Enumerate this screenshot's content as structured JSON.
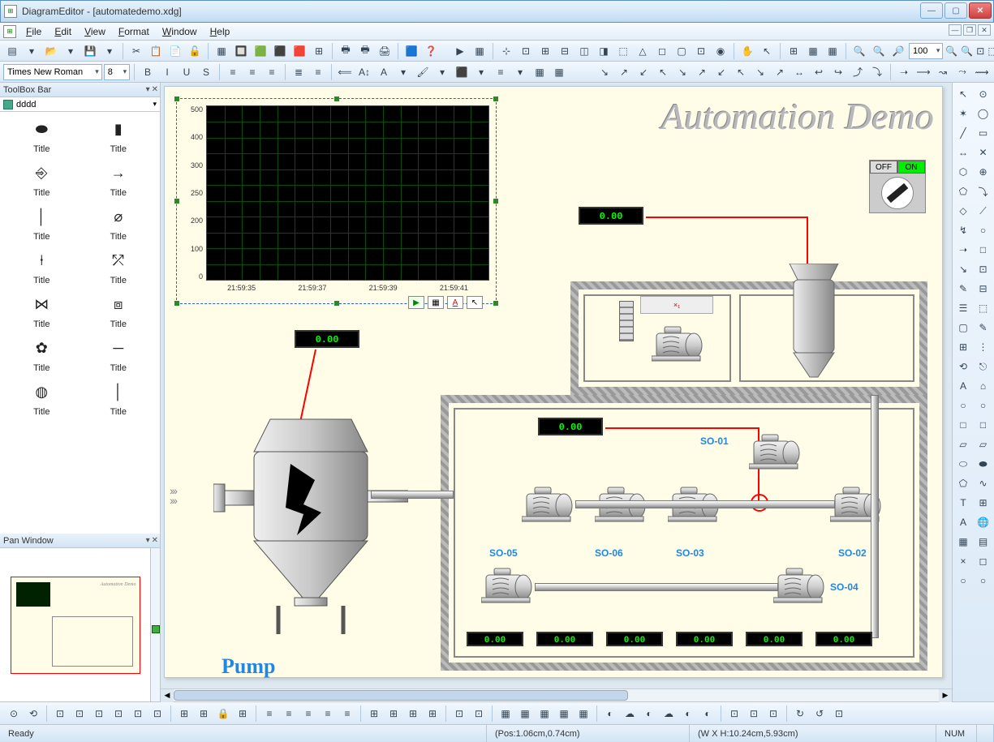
{
  "window": {
    "title": "DiagramEditor - [automatedemo.xdg]",
    "app_abbr": "⊞"
  },
  "menu": [
    "File",
    "Edit",
    "View",
    "Format",
    "Window",
    "Help"
  ],
  "font_row": {
    "font_name": "Times New Roman",
    "font_size": "8"
  },
  "zoom_value": "100",
  "toolbox": {
    "header": "ToolBox Bar",
    "tab_label": "dddd",
    "items": [
      {
        "glyph": "⬬",
        "label": "Title"
      },
      {
        "glyph": "▮",
        "label": "Title"
      },
      {
        "glyph": "⎆",
        "label": "Title"
      },
      {
        "glyph": "→",
        "label": "Title"
      },
      {
        "glyph": "│",
        "label": "Title"
      },
      {
        "glyph": "⌀",
        "label": "Title"
      },
      {
        "glyph": "⍿",
        "label": "Title"
      },
      {
        "glyph": "⤱",
        "label": "Title"
      },
      {
        "glyph": "⋈",
        "label": "Title"
      },
      {
        "glyph": "⧈",
        "label": "Title"
      },
      {
        "glyph": "✿",
        "label": "Title"
      },
      {
        "glyph": "─",
        "label": "Title"
      },
      {
        "glyph": "◍",
        "label": "Title"
      },
      {
        "glyph": "│",
        "label": "Title"
      }
    ]
  },
  "pan": {
    "header": "Pan Window",
    "thumb_title": "Automation Demo"
  },
  "canvas": {
    "big_title": "Automation Demo",
    "pump_label": "Pump",
    "switch": {
      "off": "OFF",
      "on": "ON"
    },
    "chart": {
      "y_ticks": [
        "500",
        "400",
        "300",
        "250",
        "200",
        "100",
        "0"
      ],
      "x_ticks": [
        "21:59:35",
        "21:59:37",
        "21:59:39",
        "21:59:41"
      ],
      "bg": "#000000",
      "grid_color": "#0a4a0a",
      "ylim": [
        0,
        500
      ],
      "rows": 11,
      "cols": 16
    },
    "lcds": {
      "top1": "0.00",
      "mid1": "0.00",
      "mid2": "0.00",
      "row": [
        "0.00",
        "0.00",
        "0.00",
        "0.00",
        "0.00",
        "0.00"
      ]
    },
    "motor_labels": {
      "so01": "SO-01",
      "so02": "SO-02",
      "so03": "SO-03",
      "so04": "SO-04",
      "so05": "SO-05",
      "so06": "SO-06"
    },
    "red_x": "×₁"
  },
  "status": {
    "ready": "Ready",
    "pos": "(Pos:1.06cm,0.74cm)",
    "size": "(W X H:10.24cm,5.93cm)",
    "num": "NUM"
  },
  "tb1_icons": [
    "▤",
    "▾",
    "📂",
    "▾",
    "💾",
    "▾",
    "",
    "✂",
    "📋",
    "📄",
    "🔓",
    "",
    "▦",
    "🔲",
    "🟩",
    "⬛",
    "🟥",
    "⊞",
    "",
    "🖶",
    "🖶",
    "🖨",
    "",
    "🟦",
    "❓"
  ],
  "tb1b_icons": [
    "▶",
    "▦",
    "",
    "⊹",
    "⊡",
    "⊞",
    "⊟",
    "◫",
    "◨",
    "⬚",
    "△",
    "◻",
    "▢",
    "⊡",
    "◉",
    "",
    "✋",
    "↖",
    "",
    "⊞",
    "▦",
    "▦",
    "",
    "🔍",
    "🔍",
    "🔎"
  ],
  "tb2_icons": [
    "B",
    "I",
    "U",
    "S",
    "",
    "≡",
    "≡",
    "≡",
    "",
    "≣",
    "≡",
    "",
    "⟸",
    "A↕",
    "A",
    "▾",
    "🖌",
    "▾",
    "⬛",
    "▾",
    "≡",
    "▾",
    "▦",
    "▦"
  ],
  "tb2b_icons": [
    "↘",
    "↗",
    "↙",
    "↖",
    "↘",
    "↗",
    "↙",
    "↖",
    "↘",
    "↗",
    "↔",
    "↩",
    "↪",
    "⤴",
    "⤵",
    "",
    "➝",
    "⟶",
    "↝",
    "⤳",
    "⟿"
  ],
  "right_icons": [
    "↖",
    "⊙",
    "✶",
    "◯",
    "╱",
    "▭",
    "↔",
    "✕",
    "⬡",
    "⊕",
    "⬠",
    "⤵",
    "◇",
    "⟋",
    "↯",
    "○",
    "➝",
    "□",
    "↘",
    "⊡",
    "✎",
    "⊟",
    "☰",
    "⬚",
    "▢",
    "✎",
    "⊞",
    "⋮",
    "⟲",
    "⎋",
    "A",
    "⌂",
    "○",
    "○",
    "□",
    "□",
    "▱",
    "▱",
    "⬭",
    "⬬",
    "⬠",
    "∿",
    "T",
    "⊞",
    "A",
    "🌐",
    "▦",
    "▤",
    "×",
    "◻",
    "○",
    "○"
  ],
  "bottom_icons": [
    "⊙",
    "⟲",
    "",
    "⊡",
    "⊡",
    "⊡",
    "⊡",
    "⊡",
    "⊡",
    "",
    "⊞",
    "⊞",
    "🔒",
    "⊞",
    "",
    "≡",
    "≡",
    "≡",
    "≡",
    "≡",
    "",
    "⊞",
    "⊞",
    "⊞",
    "⊞",
    "",
    "⊡",
    "⊡",
    "",
    "▦",
    "▦",
    "▦",
    "▦",
    "▦",
    "",
    "◐",
    "☁",
    "◐",
    "☁",
    "◐",
    "◐",
    "",
    "⊡",
    "⊡",
    "⊡",
    "",
    "↻",
    "↺",
    "⊡"
  ]
}
